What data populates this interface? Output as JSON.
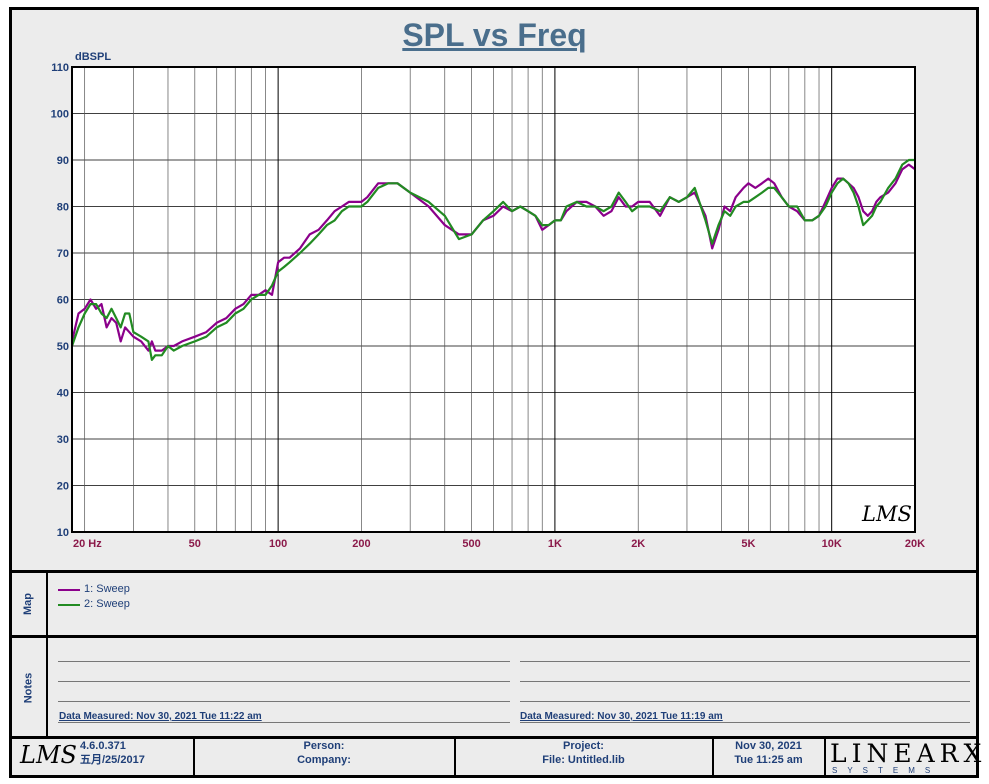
{
  "chart_data": {
    "type": "line",
    "title": "SPL vs Freq",
    "ylabel": "dBSPL",
    "xscale": "log",
    "xlim": [
      18,
      20000
    ],
    "ylim": [
      10,
      110
    ],
    "y_ticks": [
      "10",
      "20",
      "30",
      "40",
      "50",
      "60",
      "70",
      "80",
      "90",
      "100",
      "110"
    ],
    "x_ticks": [
      {
        "value": 20,
        "label": "20  Hz"
      },
      {
        "value": 50,
        "label": "50"
      },
      {
        "value": 100,
        "label": "100"
      },
      {
        "value": 200,
        "label": "200"
      },
      {
        "value": 500,
        "label": "500"
      },
      {
        "value": 1000,
        "label": "1K"
      },
      {
        "value": 2000,
        "label": "2K"
      },
      {
        "value": 5000,
        "label": "5K"
      },
      {
        "value": 10000,
        "label": "10K"
      },
      {
        "value": 20000,
        "label": "20K"
      }
    ],
    "grid": true,
    "series": [
      {
        "name": "1: Sweep",
        "color": "#8b008b",
        "points": [
          [
            18,
            51
          ],
          [
            19,
            57
          ],
          [
            20,
            58
          ],
          [
            21,
            60
          ],
          [
            22,
            58
          ],
          [
            23,
            59
          ],
          [
            24,
            54
          ],
          [
            25,
            56
          ],
          [
            26,
            55
          ],
          [
            27,
            51
          ],
          [
            28,
            54
          ],
          [
            30,
            52
          ],
          [
            32,
            51
          ],
          [
            34,
            49
          ],
          [
            35,
            51
          ],
          [
            36,
            49
          ],
          [
            38,
            49
          ],
          [
            40,
            50
          ],
          [
            42,
            50
          ],
          [
            45,
            51
          ],
          [
            50,
            52
          ],
          [
            55,
            53
          ],
          [
            60,
            55
          ],
          [
            65,
            56
          ],
          [
            70,
            58
          ],
          [
            75,
            59
          ],
          [
            80,
            61
          ],
          [
            85,
            61
          ],
          [
            90,
            62
          ],
          [
            95,
            61
          ],
          [
            100,
            68
          ],
          [
            105,
            69
          ],
          [
            110,
            69
          ],
          [
            120,
            71
          ],
          [
            130,
            74
          ],
          [
            140,
            75
          ],
          [
            150,
            77
          ],
          [
            160,
            79
          ],
          [
            170,
            80
          ],
          [
            180,
            81
          ],
          [
            190,
            81
          ],
          [
            200,
            81
          ],
          [
            210,
            82
          ],
          [
            230,
            85
          ],
          [
            250,
            85
          ],
          [
            270,
            85
          ],
          [
            300,
            83
          ],
          [
            350,
            80
          ],
          [
            400,
            76
          ],
          [
            450,
            74
          ],
          [
            500,
            74
          ],
          [
            550,
            77
          ],
          [
            600,
            78
          ],
          [
            650,
            80
          ],
          [
            700,
            79
          ],
          [
            750,
            80
          ],
          [
            800,
            79
          ],
          [
            850,
            78
          ],
          [
            900,
            75
          ],
          [
            950,
            76
          ],
          [
            1000,
            77
          ],
          [
            1050,
            77
          ],
          [
            1100,
            79
          ],
          [
            1200,
            81
          ],
          [
            1300,
            81
          ],
          [
            1400,
            80
          ],
          [
            1500,
            78
          ],
          [
            1600,
            79
          ],
          [
            1700,
            82
          ],
          [
            1800,
            80
          ],
          [
            1900,
            80
          ],
          [
            2000,
            81
          ],
          [
            2200,
            81
          ],
          [
            2400,
            78
          ],
          [
            2600,
            82
          ],
          [
            2800,
            81
          ],
          [
            3000,
            82
          ],
          [
            3200,
            83
          ],
          [
            3500,
            78
          ],
          [
            3700,
            71
          ],
          [
            3900,
            75
          ],
          [
            4100,
            80
          ],
          [
            4300,
            79
          ],
          [
            4500,
            82
          ],
          [
            4800,
            84
          ],
          [
            5000,
            85
          ],
          [
            5300,
            84
          ],
          [
            5600,
            85
          ],
          [
            5900,
            86
          ],
          [
            6200,
            85
          ],
          [
            6600,
            82
          ],
          [
            7000,
            80
          ],
          [
            7500,
            79
          ],
          [
            8000,
            77
          ],
          [
            8500,
            77
          ],
          [
            9000,
            78
          ],
          [
            9500,
            81
          ],
          [
            10000,
            84
          ],
          [
            10500,
            86
          ],
          [
            11000,
            86
          ],
          [
            11500,
            85
          ],
          [
            12000,
            84
          ],
          [
            12500,
            82
          ],
          [
            13000,
            79
          ],
          [
            13500,
            78
          ],
          [
            14000,
            79
          ],
          [
            14500,
            81
          ],
          [
            15000,
            82
          ],
          [
            16000,
            83
          ],
          [
            17000,
            85
          ],
          [
            18000,
            88
          ],
          [
            19000,
            89
          ],
          [
            20000,
            88
          ]
        ]
      },
      {
        "name": "2: Sweep",
        "color": "#228b22",
        "points": [
          [
            18,
            50
          ],
          [
            19,
            54
          ],
          [
            20,
            57
          ],
          [
            21,
            59
          ],
          [
            22,
            59
          ],
          [
            23,
            57
          ],
          [
            24,
            56
          ],
          [
            25,
            58
          ],
          [
            26,
            56
          ],
          [
            27,
            54
          ],
          [
            28,
            57
          ],
          [
            29,
            57
          ],
          [
            30,
            53
          ],
          [
            32,
            52
          ],
          [
            34,
            51
          ],
          [
            35,
            47
          ],
          [
            36,
            48
          ],
          [
            38,
            48
          ],
          [
            40,
            50
          ],
          [
            42,
            49
          ],
          [
            45,
            50
          ],
          [
            50,
            51
          ],
          [
            55,
            52
          ],
          [
            60,
            54
          ],
          [
            65,
            55
          ],
          [
            70,
            57
          ],
          [
            75,
            58
          ],
          [
            80,
            60
          ],
          [
            85,
            61
          ],
          [
            90,
            61
          ],
          [
            95,
            63
          ],
          [
            100,
            66
          ],
          [
            105,
            67
          ],
          [
            110,
            68
          ],
          [
            120,
            70
          ],
          [
            130,
            72
          ],
          [
            140,
            74
          ],
          [
            150,
            76
          ],
          [
            160,
            77
          ],
          [
            170,
            79
          ],
          [
            180,
            80
          ],
          [
            190,
            80
          ],
          [
            200,
            80
          ],
          [
            210,
            81
          ],
          [
            230,
            84
          ],
          [
            250,
            85
          ],
          [
            270,
            85
          ],
          [
            300,
            83
          ],
          [
            350,
            81
          ],
          [
            400,
            78
          ],
          [
            450,
            73
          ],
          [
            500,
            74
          ],
          [
            550,
            77
          ],
          [
            600,
            79
          ],
          [
            650,
            81
          ],
          [
            700,
            79
          ],
          [
            750,
            80
          ],
          [
            800,
            79
          ],
          [
            850,
            78
          ],
          [
            900,
            76
          ],
          [
            950,
            76
          ],
          [
            1000,
            77
          ],
          [
            1050,
            77
          ],
          [
            1100,
            80
          ],
          [
            1200,
            81
          ],
          [
            1300,
            80
          ],
          [
            1400,
            80
          ],
          [
            1500,
            79
          ],
          [
            1600,
            80
          ],
          [
            1700,
            83
          ],
          [
            1800,
            81
          ],
          [
            1900,
            79
          ],
          [
            2000,
            80
          ],
          [
            2200,
            80
          ],
          [
            2400,
            79
          ],
          [
            2600,
            82
          ],
          [
            2800,
            81
          ],
          [
            3000,
            82
          ],
          [
            3200,
            84
          ],
          [
            3500,
            77
          ],
          [
            3700,
            72
          ],
          [
            3900,
            76
          ],
          [
            4100,
            79
          ],
          [
            4300,
            78
          ],
          [
            4500,
            80
          ],
          [
            4800,
            81
          ],
          [
            5000,
            81
          ],
          [
            5300,
            82
          ],
          [
            5600,
            83
          ],
          [
            5900,
            84
          ],
          [
            6200,
            84
          ],
          [
            6600,
            82
          ],
          [
            7000,
            80
          ],
          [
            7500,
            80
          ],
          [
            8000,
            77
          ],
          [
            8500,
            77
          ],
          [
            9000,
            78
          ],
          [
            9500,
            80
          ],
          [
            10000,
            83
          ],
          [
            10500,
            85
          ],
          [
            11000,
            86
          ],
          [
            11500,
            85
          ],
          [
            12000,
            83
          ],
          [
            12500,
            80
          ],
          [
            13000,
            76
          ],
          [
            13500,
            77
          ],
          [
            14000,
            78
          ],
          [
            14500,
            80
          ],
          [
            15000,
            81
          ],
          [
            16000,
            84
          ],
          [
            17000,
            86
          ],
          [
            18000,
            89
          ],
          [
            19000,
            90
          ],
          [
            20000,
            90
          ]
        ]
      }
    ]
  },
  "legend": {
    "section_label": "Map",
    "items": [
      {
        "label": "1: Sweep",
        "color": "#8b008b"
      },
      {
        "label": "2: Sweep",
        "color": "#228b22"
      }
    ]
  },
  "notes": {
    "section_label": "Notes",
    "left_measured": "Data Measured: Nov 30, 2021  Tue 11:22 am",
    "right_measured": "Data Measured: Nov 30, 2021  Tue 11:19 am"
  },
  "footer": {
    "logo_text": "LMS",
    "version": "4.6.0.371",
    "build_date": "五月/25/2017",
    "person_label": "Person:",
    "company_label": "Company:",
    "project_label": "Project:",
    "file_label": "File: Untitled.lib",
    "date": "Nov 30, 2021",
    "time": "Tue 11:25 am",
    "brand_main": "LINEARX",
    "brand_sub": "SYSTEMS"
  },
  "watermark": "LMS"
}
